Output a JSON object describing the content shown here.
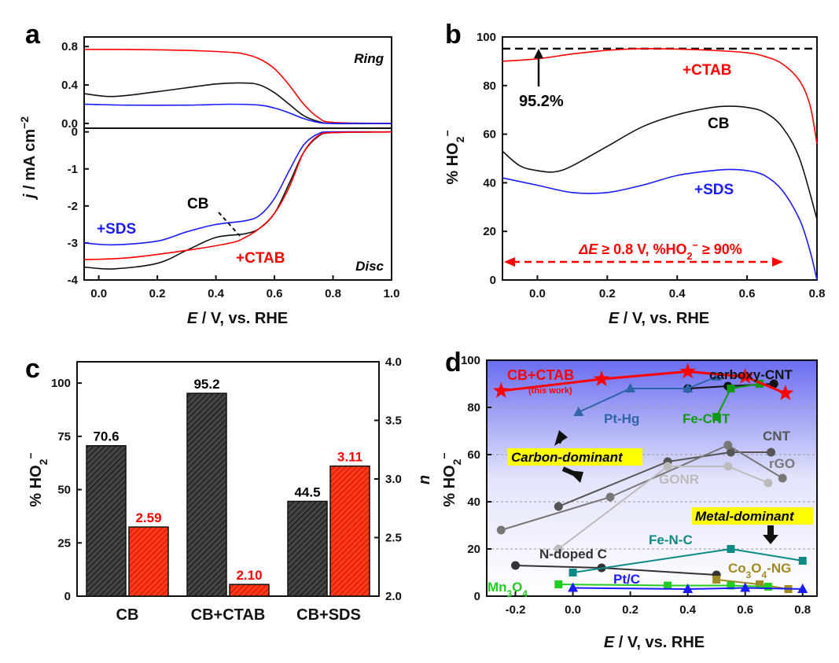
{
  "panels": {
    "a": {
      "letter": "a",
      "xlabel_italic": "E",
      "xlabel_rest": " / V, vs. RHE",
      "ylabel_italic": "j",
      "ylabel_rest": " / mA cm",
      "ylabel_sup": "−2",
      "top_label": "Ring",
      "bottom_label": "Disc",
      "curve_labels": {
        "cb": "CB",
        "sds": "+SDS",
        "ctab": "+CTAB"
      }
    },
    "b": {
      "letter": "b",
      "xlabel_italic": "E",
      "xlabel_rest": " / V, vs. RHE",
      "ylabel": "% HO",
      "ylabel_sub": "2",
      "ylabel_sup": "−",
      "ref_label": "95.2%",
      "curve_labels": {
        "ctab": "+CTAB",
        "cb": "CB",
        "sds": "+SDS"
      },
      "range_note_italic": "ΔE",
      "range_note_a": " ≥ 0.8 V, %HO",
      "range_note_sub": "2",
      "range_note_sup": "−",
      "range_note_b": " ≥ 90%"
    },
    "c": {
      "letter": "c",
      "ylabel_left": "% HO",
      "ylabel_left_sub": "2",
      "ylabel_left_sup": "−",
      "ylabel_right": "n"
    },
    "d": {
      "letter": "d",
      "xlabel_italic": "E",
      "xlabel_rest": " / V, vs. RHE",
      "ylabel": "% HO",
      "ylabel_sub": "2",
      "ylabel_sup": "−",
      "region_top": "Carbon-dominant",
      "region_bottom": "Metal-dominant",
      "this_work": "(this work)"
    }
  },
  "colors": {
    "black": "#111111",
    "red": "#ff0000",
    "blue": "#1a1aff"
  },
  "chart_data": [
    {
      "panel": "a",
      "type": "line",
      "subplots": [
        {
          "name": "Ring",
          "ylim": [
            -0.05,
            0.9
          ],
          "yticks": [
            "0.0",
            "0.4",
            "0.8"
          ],
          "xlim": [
            -0.05,
            1.0
          ],
          "series": [
            {
              "name": "+CTAB",
              "color": "#ff0000",
              "x": [
                -0.05,
                0.1,
                0.3,
                0.45,
                0.5,
                0.55,
                0.6,
                0.65,
                0.7,
                0.75,
                0.8,
                1.0
              ],
              "y": [
                0.77,
                0.77,
                0.76,
                0.74,
                0.72,
                0.67,
                0.57,
                0.4,
                0.2,
                0.06,
                0.01,
                0.0
              ]
            },
            {
              "name": "CB",
              "color": "#111111",
              "x": [
                -0.05,
                0.05,
                0.2,
                0.4,
                0.5,
                0.55,
                0.6,
                0.65,
                0.7,
                0.75,
                0.8,
                1.0
              ],
              "y": [
                0.31,
                0.28,
                0.33,
                0.41,
                0.42,
                0.4,
                0.32,
                0.2,
                0.08,
                0.02,
                0.0,
                0.0
              ]
            },
            {
              "name": "+SDS",
              "color": "#1a1aff",
              "x": [
                -0.05,
                0.1,
                0.3,
                0.45,
                0.55,
                0.6,
                0.65,
                0.7,
                0.75,
                0.8,
                1.0
              ],
              "y": [
                0.2,
                0.19,
                0.19,
                0.2,
                0.19,
                0.16,
                0.11,
                0.05,
                0.01,
                0.0,
                0.0
              ]
            }
          ]
        },
        {
          "name": "Disc",
          "ylim": [
            -4,
            0.1
          ],
          "yticks": [
            "-4",
            "-3",
            "-2",
            "-1",
            "0"
          ],
          "xlim": [
            -0.05,
            1.0
          ],
          "xticks": [
            "0.0",
            "0.2",
            "0.4",
            "0.6",
            "0.8",
            "1.0"
          ],
          "series": [
            {
              "name": "CB",
              "color": "#111111",
              "x": [
                -0.05,
                0.05,
                0.2,
                0.3,
                0.4,
                0.5,
                0.55,
                0.6,
                0.65,
                0.7,
                0.75,
                0.8,
                1.0
              ],
              "y": [
                -3.65,
                -3.7,
                -3.55,
                -3.2,
                -2.85,
                -2.75,
                -2.6,
                -2.2,
                -1.4,
                -0.55,
                -0.12,
                -0.02,
                0.0
              ]
            },
            {
              "name": "+SDS",
              "color": "#1a1aff",
              "x": [
                -0.05,
                0.05,
                0.2,
                0.3,
                0.4,
                0.5,
                0.55,
                0.6,
                0.65,
                0.7,
                0.75,
                0.8,
                1.0
              ],
              "y": [
                -3.0,
                -3.05,
                -2.95,
                -2.7,
                -2.5,
                -2.4,
                -2.25,
                -1.8,
                -1.05,
                -0.35,
                -0.05,
                0.0,
                0.0
              ]
            },
            {
              "name": "+CTAB",
              "color": "#ff0000",
              "x": [
                -0.05,
                0.1,
                0.3,
                0.45,
                0.5,
                0.55,
                0.6,
                0.65,
                0.7,
                0.75,
                0.8,
                1.0
              ],
              "y": [
                -3.45,
                -3.4,
                -3.2,
                -3.0,
                -2.85,
                -2.6,
                -2.2,
                -1.5,
                -0.55,
                -0.1,
                -0.02,
                0.0
              ]
            }
          ]
        }
      ]
    },
    {
      "panel": "b",
      "type": "line",
      "xlim": [
        -0.1,
        0.8
      ],
      "ylim": [
        0,
        100
      ],
      "xticks": [
        "0.0",
        "0.2",
        "0.4",
        "0.6",
        "0.8"
      ],
      "yticks": [
        "0",
        "20",
        "40",
        "60",
        "80",
        "100"
      ],
      "reference_line": 95.2,
      "series": [
        {
          "name": "+CTAB",
          "color": "#ff0000",
          "x": [
            -0.1,
            0.0,
            0.1,
            0.2,
            0.3,
            0.4,
            0.5,
            0.6,
            0.65,
            0.7,
            0.75,
            0.78,
            0.8
          ],
          "y": [
            90,
            91,
            93,
            94.5,
            95.2,
            95,
            94.5,
            93.5,
            92,
            89,
            82,
            72,
            56
          ]
        },
        {
          "name": "CB",
          "color": "#111111",
          "x": [
            -0.1,
            -0.05,
            0.0,
            0.05,
            0.1,
            0.2,
            0.3,
            0.4,
            0.5,
            0.55,
            0.6,
            0.65,
            0.7,
            0.75,
            0.8
          ],
          "y": [
            53,
            47,
            45,
            44.5,
            47,
            55,
            63,
            68,
            71,
            71.5,
            71,
            69,
            63,
            50,
            25
          ]
        },
        {
          "name": "+SDS",
          "color": "#1a1aff",
          "x": [
            -0.1,
            0.0,
            0.1,
            0.2,
            0.3,
            0.4,
            0.5,
            0.55,
            0.6,
            0.65,
            0.7,
            0.75,
            0.78,
            0.8
          ],
          "y": [
            42,
            39,
            36,
            36,
            39,
            43,
            45,
            45.5,
            45,
            43,
            37,
            25,
            12,
            0
          ]
        }
      ]
    },
    {
      "panel": "c",
      "type": "bar",
      "categories": [
        "CB",
        "CB+CTAB",
        "CB+SDS"
      ],
      "ylim_left": [
        0,
        110
      ],
      "ylim_right": [
        2.0,
        4.0
      ],
      "yticks_left": [
        "0",
        "25",
        "50",
        "75",
        "100"
      ],
      "yticks_right": [
        "2.0",
        "2.5",
        "3.0",
        "3.5",
        "4.0"
      ],
      "series": [
        {
          "axis": "left",
          "color": "#333333",
          "values": [
            70.6,
            95.2,
            44.5
          ],
          "labels": [
            "70.6",
            "95.2",
            "44.5"
          ]
        },
        {
          "axis": "right",
          "color": "#ff0000",
          "values": [
            2.59,
            2.1,
            3.11
          ],
          "labels": [
            "2.59",
            "2.10",
            "3.11"
          ]
        }
      ]
    },
    {
      "panel": "d",
      "type": "scatter",
      "xlim": [
        -0.3,
        0.85
      ],
      "ylim": [
        0,
        100
      ],
      "xticks": [
        "-0.2",
        "0.0",
        "0.2",
        "0.4",
        "0.6",
        "0.8"
      ],
      "yticks": [
        "0",
        "20",
        "40",
        "60",
        "80",
        "100"
      ],
      "series": [
        {
          "name": "CB+CTAB",
          "color": "#ff0000",
          "marker": "star",
          "x": [
            -0.25,
            0.1,
            0.4,
            0.6,
            0.74
          ],
          "y": [
            87,
            92,
            95.2,
            93,
            86
          ]
        },
        {
          "name": "carboxy-CNT",
          "color": "#111111",
          "marker": "circle",
          "x": [
            0.4,
            0.54,
            0.7
          ],
          "y": [
            88,
            89,
            90
          ]
        },
        {
          "name": "Pt-Hg",
          "color": "#2e64a8",
          "marker": "triangle",
          "x": [
            0.02,
            0.2,
            0.4,
            0.5
          ],
          "y": [
            78,
            88,
            88,
            93
          ]
        },
        {
          "name": "Fe-CNT",
          "color": "#119911",
          "marker": "square",
          "x": [
            0.5,
            0.55,
            0.65
          ],
          "y": [
            76,
            88,
            90
          ]
        },
        {
          "name": "CNT",
          "color": "#555555",
          "marker": "circle",
          "x": [
            -0.05,
            0.33,
            0.55,
            0.69
          ],
          "y": [
            38,
            57,
            61,
            61
          ]
        },
        {
          "name": "rGO",
          "color": "#777777",
          "marker": "circle",
          "x": [
            -0.25,
            0.13,
            0.54,
            0.73
          ],
          "y": [
            28,
            42,
            64,
            50
          ]
        },
        {
          "name": "GONR",
          "color": "#bbbbbb",
          "marker": "circle",
          "x": [
            -0.05,
            0.33,
            0.54,
            0.68
          ],
          "y": [
            20,
            55,
            55,
            48
          ]
        },
        {
          "name": "N-doped C",
          "color": "#333333",
          "marker": "circle",
          "x": [
            -0.2,
            0.1,
            0.5
          ],
          "y": [
            13,
            12,
            9
          ]
        },
        {
          "name": "Fe-N-C",
          "color": "#0e8a86",
          "marker": "square",
          "x": [
            0.0,
            0.55,
            0.8
          ],
          "y": [
            10,
            20,
            15
          ]
        },
        {
          "name": "Co3O4-NG",
          "color": "#a08a22",
          "marker": "square",
          "x": [
            0.5,
            0.65,
            0.75
          ],
          "y": [
            7,
            5,
            3
          ]
        },
        {
          "name": "Mn3O4",
          "color": "#22cc22",
          "marker": "square",
          "x": [
            -0.05,
            0.33,
            0.55,
            0.68
          ],
          "y": [
            5,
            4.5,
            4.5,
            4
          ]
        },
        {
          "name": "Pt/C",
          "color": "#1a1aff",
          "marker": "triangle",
          "x": [
            0.0,
            0.4,
            0.6,
            0.8
          ],
          "y": [
            3.5,
            3,
            3.5,
            3
          ]
        }
      ],
      "point_labels": [
        {
          "text": "CB+CTAB",
          "color": "#ff0000"
        },
        {
          "text": "carboxy-CNT",
          "color": "#111111"
        },
        {
          "text": "Pt-Hg",
          "color": "#2e64a8"
        },
        {
          "text": "Fe-CNT",
          "color": "#119911"
        },
        {
          "text": "CNT",
          "color": "#555555"
        },
        {
          "text": "rGO",
          "color": "#777777"
        },
        {
          "text": "GONR",
          "color": "#bbbbbb"
        },
        {
          "text": "N-doped C",
          "color": "#333333"
        },
        {
          "text": "Fe-N-C",
          "color": "#0e8a86"
        },
        {
          "text": "Co",
          "sub": "3",
          "mid": "O",
          "sub2": "4",
          "tail": "-NG",
          "color": "#a08a22"
        },
        {
          "text": "Mn",
          "sub": "3",
          "mid": "O",
          "sub2": "4",
          "tail": "",
          "color": "#22cc22"
        },
        {
          "text": "Pt/C",
          "color": "#1a1aff"
        }
      ]
    }
  ]
}
